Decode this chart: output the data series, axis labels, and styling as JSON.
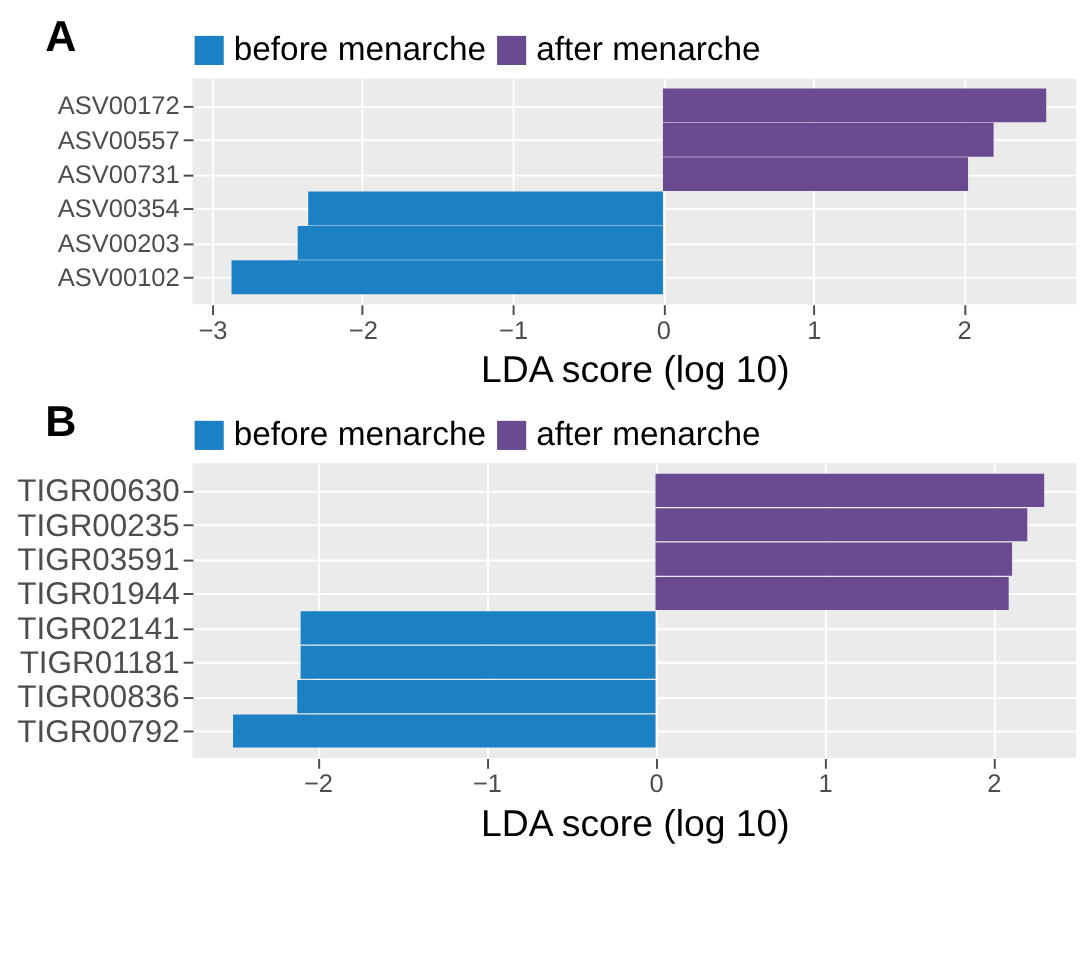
{
  "chart_data": [
    {
      "type": "bar",
      "title": "A",
      "orientation": "horizontal",
      "xlabel": "LDA score (log 10)",
      "categories": [
        "ASV00172",
        "ASV00557",
        "ASV00731",
        "ASV00354",
        "ASV00203",
        "ASV00102"
      ],
      "series": [
        {
          "name": "before menarche",
          "color": "#1b80c4",
          "values": [
            null,
            null,
            null,
            -2.36,
            -2.43,
            -2.87
          ]
        },
        {
          "name": "after menarche",
          "color": "#6a4b91",
          "values": [
            2.55,
            2.2,
            2.03,
            null,
            null,
            null
          ]
        }
      ],
      "xlim": [
        -3.13,
        2.75
      ],
      "xticks": [
        -3,
        -2,
        -1,
        0,
        1,
        2
      ],
      "grid": true,
      "legend": "top"
    },
    {
      "type": "bar",
      "title": "B",
      "orientation": "horizontal",
      "xlabel": "LDA score (log 10)",
      "categories": [
        "TIGR00630",
        "TIGR00235",
        "TIGR03591",
        "TIGR01944",
        "TIGR02141",
        "TIGR01181",
        "TIGR00836",
        "TIGR00792"
      ],
      "series": [
        {
          "name": "before menarche",
          "color": "#1b80c4",
          "values": [
            null,
            null,
            null,
            null,
            -2.1,
            -2.1,
            -2.12,
            -2.5
          ]
        },
        {
          "name": "after menarche",
          "color": "#6a4b91",
          "values": [
            2.3,
            2.2,
            2.11,
            2.09,
            null,
            null,
            null,
            null
          ]
        }
      ],
      "xlim": [
        -2.74,
        2.49
      ],
      "xticks": [
        -2,
        -1,
        0,
        1,
        2
      ],
      "grid": true,
      "legend": "top"
    }
  ]
}
